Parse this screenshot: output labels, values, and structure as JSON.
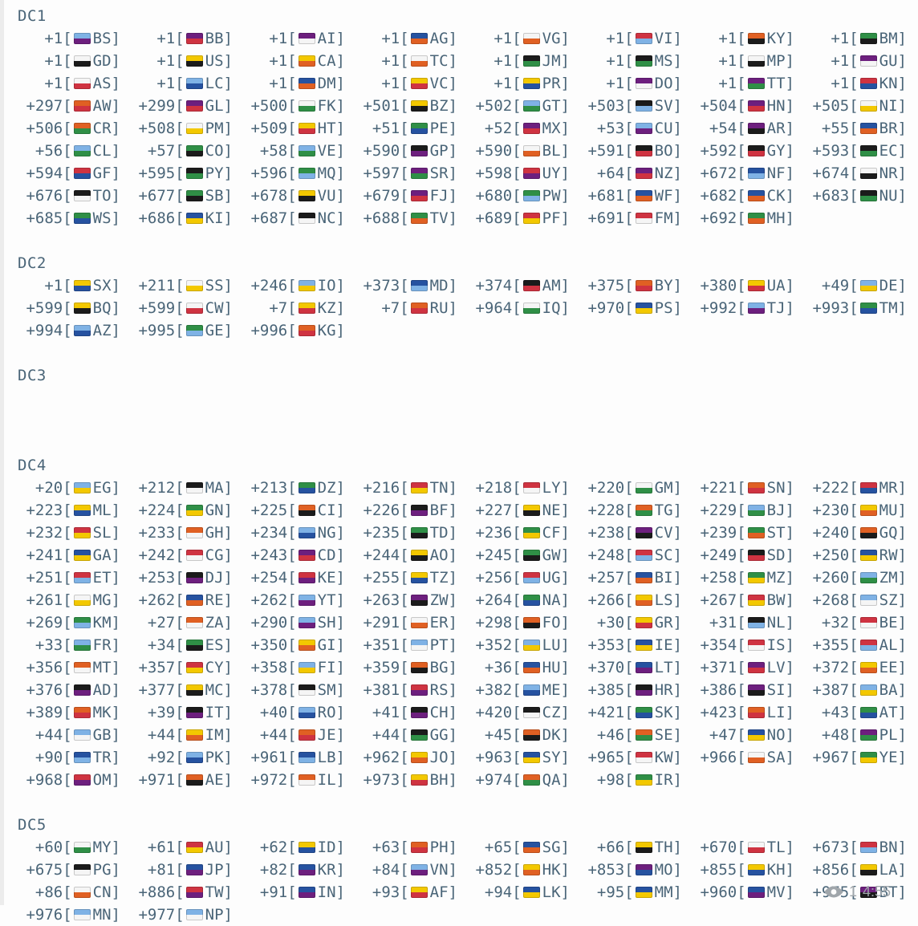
{
  "message": {
    "text_color": "#4a6578",
    "sections": [
      {
        "name": "DC1",
        "entries": [
          [
            "+1",
            "BS"
          ],
          [
            "+1",
            "BB"
          ],
          [
            "+1",
            "AI"
          ],
          [
            "+1",
            "AG"
          ],
          [
            "+1",
            "VG"
          ],
          [
            "+1",
            "VI"
          ],
          [
            "+1",
            "KY"
          ],
          [
            "+1",
            "BM"
          ],
          [
            "+1",
            "GD"
          ],
          [
            "+1",
            "US"
          ],
          [
            "+1",
            "CA"
          ],
          [
            "+1",
            "TC"
          ],
          [
            "+1",
            "JM"
          ],
          [
            "+1",
            "MS"
          ],
          [
            "+1",
            "MP"
          ],
          [
            "+1",
            "GU"
          ],
          [
            "+1",
            "AS"
          ],
          [
            "+1",
            "LC"
          ],
          [
            "+1",
            "DM"
          ],
          [
            "+1",
            "VC"
          ],
          [
            "+1",
            "PR"
          ],
          [
            "+1",
            "DO"
          ],
          [
            "+1",
            "TT"
          ],
          [
            "+1",
            "KN"
          ],
          [
            "+297",
            "AW"
          ],
          [
            "+299",
            "GL"
          ],
          [
            "+500",
            "FK"
          ],
          [
            "+501",
            "BZ"
          ],
          [
            "+502",
            "GT"
          ],
          [
            "+503",
            "SV"
          ],
          [
            "+504",
            "HN"
          ],
          [
            "+505",
            "NI"
          ],
          [
            "+506",
            "CR"
          ],
          [
            "+508",
            "PM"
          ],
          [
            "+509",
            "HT"
          ],
          [
            "+51",
            "PE"
          ],
          [
            "+52",
            "MX"
          ],
          [
            "+53",
            "CU"
          ],
          [
            "+54",
            "AR"
          ],
          [
            "+55",
            "BR"
          ],
          [
            "+56",
            "CL"
          ],
          [
            "+57",
            "CO"
          ],
          [
            "+58",
            "VE"
          ],
          [
            "+590",
            "GP"
          ],
          [
            "+590",
            "BL"
          ],
          [
            "+591",
            "BO"
          ],
          [
            "+592",
            "GY"
          ],
          [
            "+593",
            "EC"
          ],
          [
            "+594",
            "GF"
          ],
          [
            "+595",
            "PY"
          ],
          [
            "+596",
            "MQ"
          ],
          [
            "+597",
            "SR"
          ],
          [
            "+598",
            "UY"
          ],
          [
            "+64",
            "NZ"
          ],
          [
            "+672",
            "NF"
          ],
          [
            "+674",
            "NR"
          ],
          [
            "+676",
            "TO"
          ],
          [
            "+677",
            "SB"
          ],
          [
            "+678",
            "VU"
          ],
          [
            "+679",
            "FJ"
          ],
          [
            "+680",
            "PW"
          ],
          [
            "+681",
            "WF"
          ],
          [
            "+682",
            "CK"
          ],
          [
            "+683",
            "NU"
          ],
          [
            "+685",
            "WS"
          ],
          [
            "+686",
            "KI"
          ],
          [
            "+687",
            "NC"
          ],
          [
            "+688",
            "TV"
          ],
          [
            "+689",
            "PF"
          ],
          [
            "+691",
            "FM"
          ],
          [
            "+692",
            "MH"
          ]
        ]
      },
      {
        "name": "DC2",
        "entries": [
          [
            "+1",
            "SX"
          ],
          [
            "+211",
            "SS"
          ],
          [
            "+246",
            "IO"
          ],
          [
            "+373",
            "MD"
          ],
          [
            "+374",
            "AM"
          ],
          [
            "+375",
            "BY"
          ],
          [
            "+380",
            "UA"
          ],
          [
            "+49",
            "DE"
          ],
          [
            "+599",
            "BQ"
          ],
          [
            "+599",
            "CW"
          ],
          [
            "+7",
            "KZ"
          ],
          [
            "+7",
            "RU"
          ],
          [
            "+964",
            "IQ"
          ],
          [
            "+970",
            "PS"
          ],
          [
            "+992",
            "TJ"
          ],
          [
            "+993",
            "TM"
          ],
          [
            "+994",
            "AZ"
          ],
          [
            "+995",
            "GE"
          ],
          [
            "+996",
            "KG"
          ]
        ]
      },
      {
        "name": "DC3",
        "entries": []
      },
      {
        "name": "DC4",
        "entries": [
          [
            "+20",
            "EG"
          ],
          [
            "+212",
            "MA"
          ],
          [
            "+213",
            "DZ"
          ],
          [
            "+216",
            "TN"
          ],
          [
            "+218",
            "LY"
          ],
          [
            "+220",
            "GM"
          ],
          [
            "+221",
            "SN"
          ],
          [
            "+222",
            "MR"
          ],
          [
            "+223",
            "ML"
          ],
          [
            "+224",
            "GN"
          ],
          [
            "+225",
            "CI"
          ],
          [
            "+226",
            "BF"
          ],
          [
            "+227",
            "NE"
          ],
          [
            "+228",
            "TG"
          ],
          [
            "+229",
            "BJ"
          ],
          [
            "+230",
            "MU"
          ],
          [
            "+232",
            "SL"
          ],
          [
            "+233",
            "GH"
          ],
          [
            "+234",
            "NG"
          ],
          [
            "+235",
            "TD"
          ],
          [
            "+236",
            "CF"
          ],
          [
            "+238",
            "CV"
          ],
          [
            "+239",
            "ST"
          ],
          [
            "+240",
            "GQ"
          ],
          [
            "+241",
            "GA"
          ],
          [
            "+242",
            "CG"
          ],
          [
            "+243",
            "CD"
          ],
          [
            "+244",
            "AO"
          ],
          [
            "+245",
            "GW"
          ],
          [
            "+248",
            "SC"
          ],
          [
            "+249",
            "SD"
          ],
          [
            "+250",
            "RW"
          ],
          [
            "+251",
            "ET"
          ],
          [
            "+253",
            "DJ"
          ],
          [
            "+254",
            "KE"
          ],
          [
            "+255",
            "TZ"
          ],
          [
            "+256",
            "UG"
          ],
          [
            "+257",
            "BI"
          ],
          [
            "+258",
            "MZ"
          ],
          [
            "+260",
            "ZM"
          ],
          [
            "+261",
            "MG"
          ],
          [
            "+262",
            "RE"
          ],
          [
            "+262",
            "YT"
          ],
          [
            "+263",
            "ZW"
          ],
          [
            "+264",
            "NA"
          ],
          [
            "+266",
            "LS"
          ],
          [
            "+267",
            "BW"
          ],
          [
            "+268",
            "SZ"
          ],
          [
            "+269",
            "KM"
          ],
          [
            "+27",
            "ZA"
          ],
          [
            "+290",
            "SH"
          ],
          [
            "+291",
            "ER"
          ],
          [
            "+298",
            "FO"
          ],
          [
            "+30",
            "GR"
          ],
          [
            "+31",
            "NL"
          ],
          [
            "+32",
            "BE"
          ],
          [
            "+33",
            "FR"
          ],
          [
            "+34",
            "ES"
          ],
          [
            "+350",
            "GI"
          ],
          [
            "+351",
            "PT"
          ],
          [
            "+352",
            "LU"
          ],
          [
            "+353",
            "IE"
          ],
          [
            "+354",
            "IS"
          ],
          [
            "+355",
            "AL"
          ],
          [
            "+356",
            "MT"
          ],
          [
            "+357",
            "CY"
          ],
          [
            "+358",
            "FI"
          ],
          [
            "+359",
            "BG"
          ],
          [
            "+36",
            "HU"
          ],
          [
            "+370",
            "LT"
          ],
          [
            "+371",
            "LV"
          ],
          [
            "+372",
            "EE"
          ],
          [
            "+376",
            "AD"
          ],
          [
            "+377",
            "MC"
          ],
          [
            "+378",
            "SM"
          ],
          [
            "+381",
            "RS"
          ],
          [
            "+382",
            "ME"
          ],
          [
            "+385",
            "HR"
          ],
          [
            "+386",
            "SI"
          ],
          [
            "+387",
            "BA"
          ],
          [
            "+389",
            "MK"
          ],
          [
            "+39",
            "IT"
          ],
          [
            "+40",
            "RO"
          ],
          [
            "+41",
            "CH"
          ],
          [
            "+420",
            "CZ"
          ],
          [
            "+421",
            "SK"
          ],
          [
            "+423",
            "LI"
          ],
          [
            "+43",
            "AT"
          ],
          [
            "+44",
            "GB"
          ],
          [
            "+44",
            "IM"
          ],
          [
            "+44",
            "JE"
          ],
          [
            "+44",
            "GG"
          ],
          [
            "+45",
            "DK"
          ],
          [
            "+46",
            "SE"
          ],
          [
            "+47",
            "NO"
          ],
          [
            "+48",
            "PL"
          ],
          [
            "+90",
            "TR"
          ],
          [
            "+92",
            "PK"
          ],
          [
            "+961",
            "LB"
          ],
          [
            "+962",
            "JO"
          ],
          [
            "+963",
            "SY"
          ],
          [
            "+965",
            "KW"
          ],
          [
            "+966",
            "SA"
          ],
          [
            "+967",
            "YE"
          ],
          [
            "+968",
            "OM"
          ],
          [
            "+971",
            "AE"
          ],
          [
            "+972",
            "IL"
          ],
          [
            "+973",
            "BH"
          ],
          [
            "+974",
            "QA"
          ],
          [
            "+98",
            "IR"
          ]
        ]
      },
      {
        "name": "DC5",
        "entries": [
          [
            "+60",
            "MY"
          ],
          [
            "+61",
            "AU"
          ],
          [
            "+62",
            "ID"
          ],
          [
            "+63",
            "PH"
          ],
          [
            "+65",
            "SG"
          ],
          [
            "+66",
            "TH"
          ],
          [
            "+670",
            "TL"
          ],
          [
            "+673",
            "BN"
          ],
          [
            "+675",
            "PG"
          ],
          [
            "+81",
            "JP"
          ],
          [
            "+82",
            "KR"
          ],
          [
            "+84",
            "VN"
          ],
          [
            "+852",
            "HK"
          ],
          [
            "+853",
            "MO"
          ],
          [
            "+855",
            "KH"
          ],
          [
            "+856",
            "LA"
          ],
          [
            "+86",
            "CN"
          ],
          [
            "+886",
            "TW"
          ],
          [
            "+91",
            "IN"
          ],
          [
            "+93",
            "AF"
          ],
          [
            "+94",
            "LK"
          ],
          [
            "+95",
            "MM"
          ],
          [
            "+960",
            "MV"
          ],
          [
            "+975",
            "BT"
          ],
          [
            "+976",
            "MN"
          ],
          [
            "+977",
            "NP"
          ]
        ]
      }
    ]
  },
  "meta": {
    "views": "1",
    "time": "4:55",
    "views_icon": "eye-icon",
    "meta_color": "#a0a6ab"
  }
}
